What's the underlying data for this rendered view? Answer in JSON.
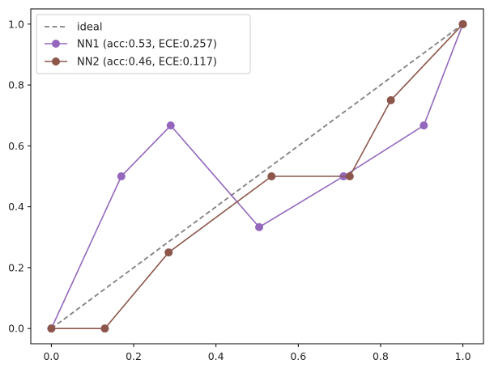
{
  "chart_data": {
    "type": "line",
    "title": "",
    "xlabel": "",
    "ylabel": "",
    "xlim": [
      -0.05,
      1.05
    ],
    "ylim": [
      -0.05,
      1.05
    ],
    "xticks": [
      0.0,
      0.2,
      0.4,
      0.6,
      0.8,
      1.0
    ],
    "yticks": [
      0.0,
      0.2,
      0.4,
      0.6,
      0.8,
      1.0
    ],
    "xtick_labels": [
      "0.0",
      "0.2",
      "0.4",
      "0.6",
      "0.8",
      "1.0"
    ],
    "ytick_labels": [
      "0.0",
      "0.2",
      "0.4",
      "0.6",
      "0.8",
      "1.0"
    ],
    "grid": false,
    "legend_position": "top-left",
    "series": [
      {
        "name": "ideal",
        "style": "dashed",
        "color": "#808080",
        "x": [
          0.0,
          1.0
        ],
        "y": [
          0.0,
          1.0
        ]
      },
      {
        "name": "NN1 (acc:0.53, ECE:0.257)",
        "style": "line-marker",
        "color": "#9467bd",
        "x": [
          0.0,
          0.17,
          0.29,
          0.505,
          0.71,
          0.905,
          1.0
        ],
        "y": [
          0.0,
          0.5,
          0.667,
          0.333,
          0.5,
          0.667,
          1.0
        ]
      },
      {
        "name": "NN2 (acc:0.46, ECE:0.117)",
        "style": "line-marker",
        "color": "#8c564b",
        "x": [
          0.0,
          0.13,
          0.285,
          0.535,
          0.725,
          0.825,
          1.0
        ],
        "y": [
          0.0,
          0.0,
          0.25,
          0.5,
          0.5,
          0.75,
          1.0
        ]
      }
    ]
  }
}
